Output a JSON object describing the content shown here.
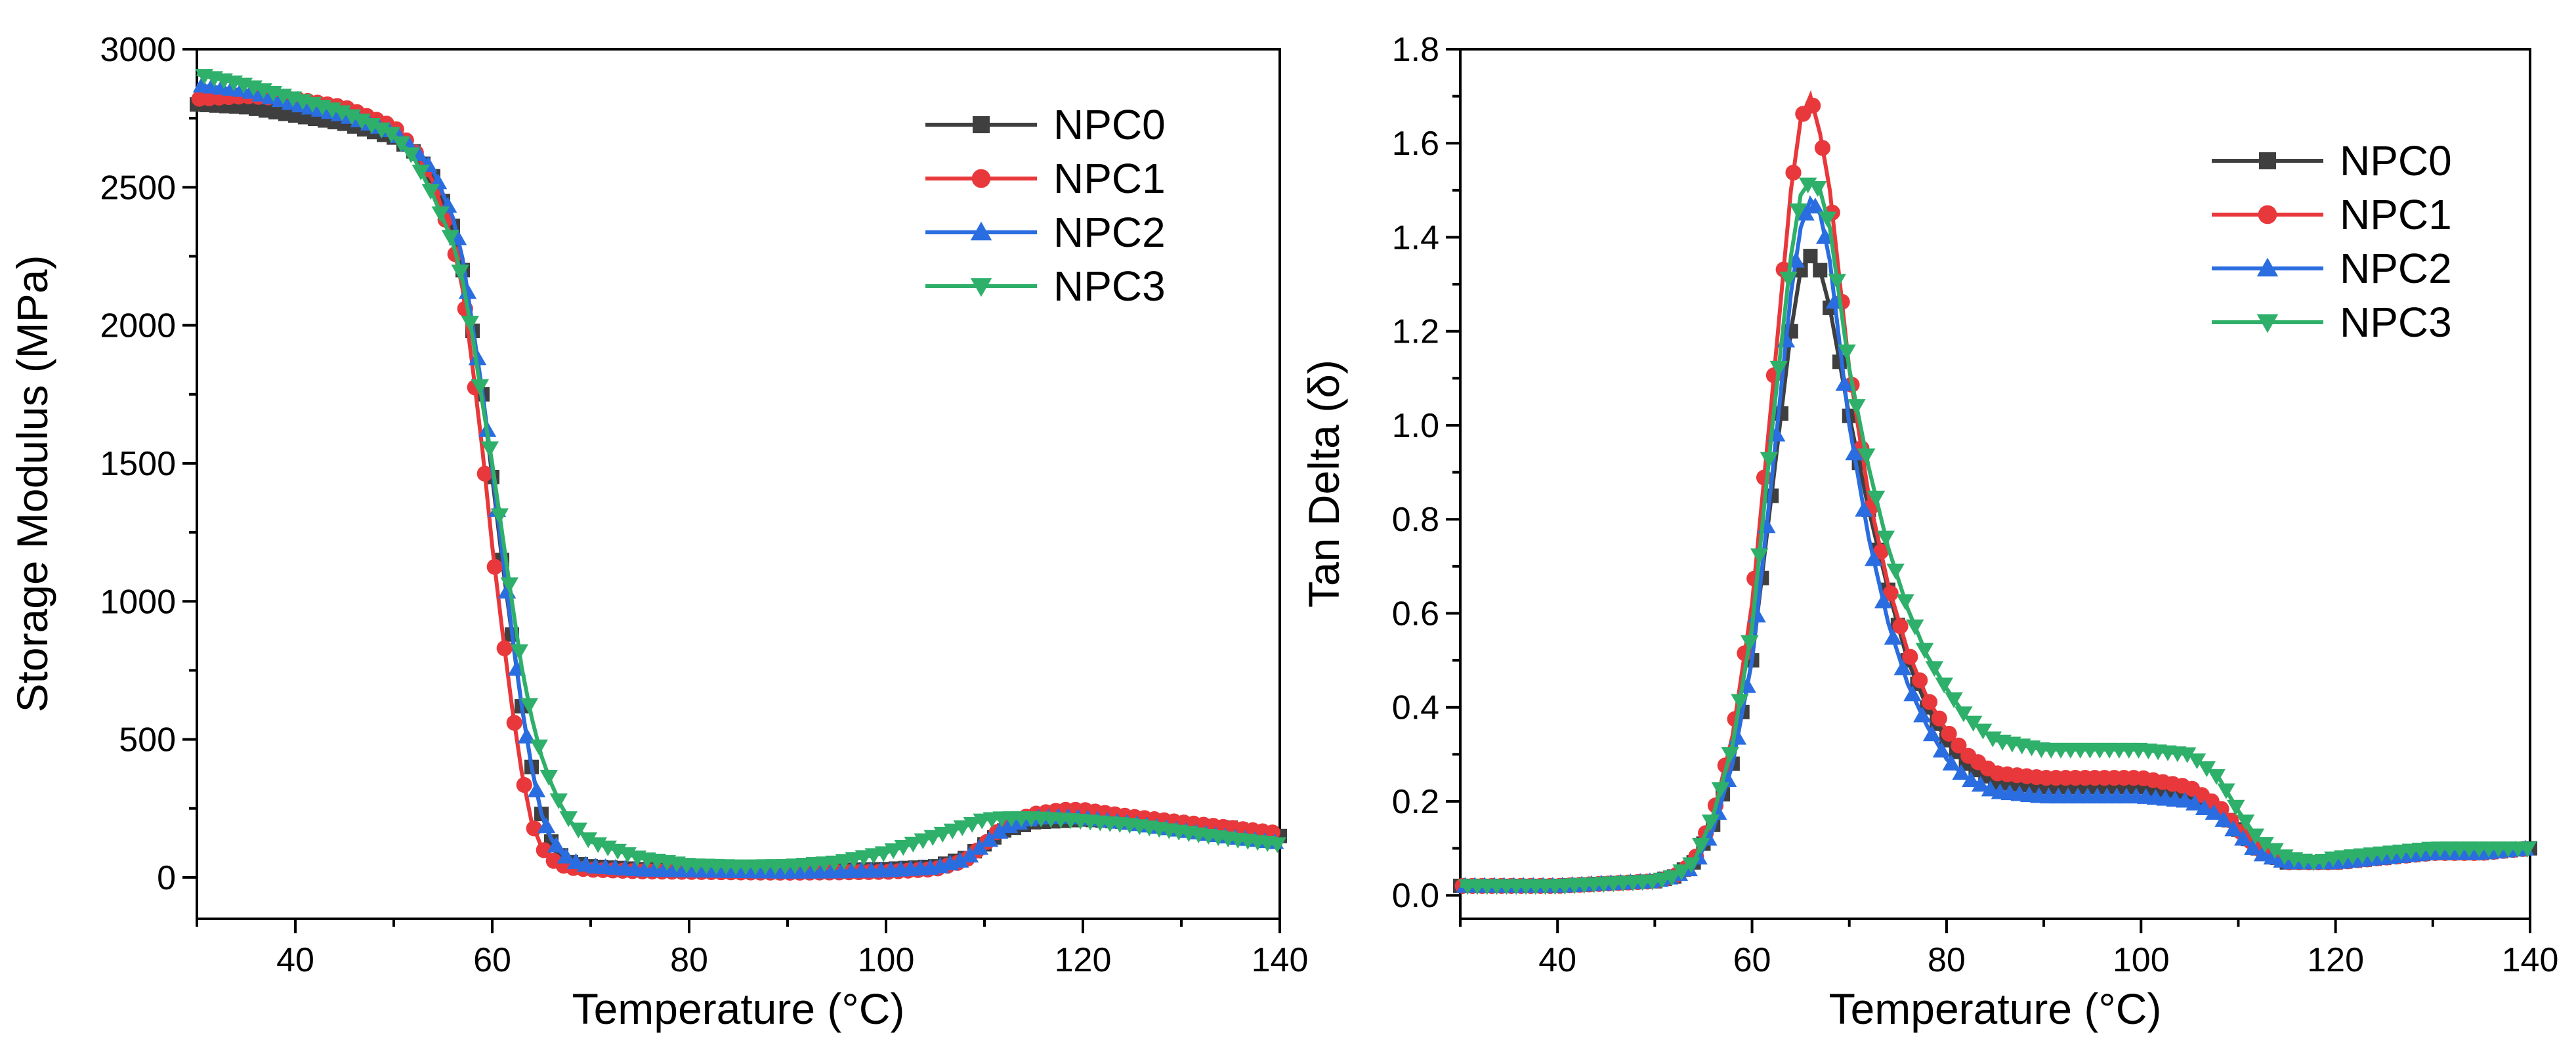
{
  "chart_data": [
    {
      "type": "line",
      "xlabel": "Temperature (°C)",
      "ylabel": "Storage Modulus (MPa)",
      "xlim": [
        30,
        140
      ],
      "ylim": [
        -150,
        3000
      ],
      "xticks": [
        40,
        60,
        80,
        100,
        120,
        140
      ],
      "yticks": [
        0,
        500,
        1000,
        1500,
        2000,
        2500,
        3000
      ],
      "legend_position": "top-right",
      "series": [
        {
          "name": "NPC0",
          "color": "#3f3f3f",
          "marker": "square",
          "x": [
            30,
            35,
            40,
            45,
            50,
            52,
            54,
            56,
            57,
            58,
            59,
            60,
            61,
            62,
            63,
            64,
            65,
            66,
            67,
            68,
            70,
            75,
            80,
            85,
            90,
            95,
            100,
            105,
            108,
            110,
            112,
            115,
            118,
            120,
            125,
            130,
            135,
            140
          ],
          "y": [
            2800,
            2790,
            2760,
            2730,
            2680,
            2630,
            2540,
            2360,
            2200,
            1980,
            1750,
            1450,
            1150,
            880,
            620,
            400,
            230,
            130,
            80,
            55,
            40,
            30,
            28,
            26,
            25,
            27,
            30,
            40,
            70,
            120,
            170,
            200,
            205,
            210,
            200,
            190,
            180,
            150
          ]
        },
        {
          "name": "NPC1",
          "color": "#e8383b",
          "marker": "circle",
          "x": [
            30,
            35,
            40,
            45,
            50,
            52,
            54,
            56,
            57,
            58,
            59,
            60,
            61,
            62,
            63,
            64,
            65,
            66,
            67,
            68,
            70,
            75,
            80,
            85,
            90,
            95,
            100,
            105,
            108,
            110,
            112,
            115,
            118,
            120,
            125,
            130,
            135,
            140
          ],
          "y": [
            2820,
            2830,
            2820,
            2790,
            2720,
            2640,
            2520,
            2300,
            2130,
            1850,
            1550,
            1200,
            900,
            620,
            380,
            200,
            110,
            65,
            45,
            35,
            28,
            22,
            20,
            18,
            17,
            18,
            20,
            30,
            60,
            120,
            190,
            230,
            245,
            245,
            220,
            200,
            180,
            160
          ]
        },
        {
          "name": "NPC2",
          "color": "#2a6de0",
          "marker": "triangle-up",
          "x": [
            30,
            35,
            40,
            45,
            50,
            52,
            54,
            56,
            57,
            58,
            59,
            60,
            61,
            62,
            63,
            64,
            65,
            66,
            67,
            68,
            70,
            75,
            80,
            85,
            90,
            95,
            100,
            105,
            108,
            110,
            112,
            115,
            118,
            120,
            125,
            130,
            135,
            140
          ],
          "y": [
            2870,
            2850,
            2800,
            2760,
            2700,
            2640,
            2560,
            2390,
            2240,
            2000,
            1760,
            1480,
            1180,
            890,
            620,
            400,
            230,
            140,
            90,
            60,
            40,
            28,
            25,
            22,
            20,
            21,
            25,
            35,
            65,
            120,
            180,
            215,
            220,
            215,
            195,
            170,
            145,
            125
          ]
        },
        {
          "name": "NPC3",
          "color": "#2eb06a",
          "marker": "triangle-down",
          "x": [
            30,
            35,
            40,
            45,
            50,
            52,
            54,
            56,
            57,
            58,
            59,
            60,
            61,
            62,
            63,
            64,
            65,
            66,
            67,
            68,
            70,
            75,
            80,
            85,
            90,
            95,
            100,
            105,
            108,
            110,
            112,
            115,
            118,
            120,
            125,
            130,
            135,
            140
          ],
          "y": [
            2910,
            2870,
            2820,
            2770,
            2690,
            2610,
            2470,
            2300,
            2160,
            1960,
            1720,
            1500,
            1250,
            1000,
            760,
            580,
            440,
            340,
            260,
            200,
            130,
            70,
            45,
            40,
            42,
            55,
            90,
            150,
            185,
            210,
            215,
            215,
            210,
            205,
            190,
            165,
            140,
            120
          ]
        }
      ]
    },
    {
      "type": "line",
      "xlabel": "Temperature (°C)",
      "ylabel": "Tan Delta (δ)",
      "xlim": [
        30,
        140
      ],
      "ylim": [
        -0.05,
        1.8
      ],
      "xticks": [
        40,
        60,
        80,
        100,
        120,
        140
      ],
      "yticks": [
        0.0,
        0.2,
        0.4,
        0.6,
        0.8,
        1.0,
        1.2,
        1.4,
        1.6,
        1.8
      ],
      "legend_position": "top-right",
      "series": [
        {
          "name": "NPC0",
          "color": "#3f3f3f",
          "marker": "square",
          "x": [
            30,
            40,
            50,
            52,
            54,
            56,
            58,
            60,
            62,
            64,
            65,
            66,
            67,
            68,
            70,
            72,
            74,
            76,
            78,
            80,
            82,
            85,
            90,
            95,
            100,
            105,
            108,
            110,
            112,
            115,
            118,
            120,
            125,
            130,
            135,
            140
          ],
          "y": [
            0.02,
            0.02,
            0.03,
            0.04,
            0.07,
            0.15,
            0.28,
            0.5,
            0.85,
            1.2,
            1.33,
            1.36,
            1.33,
            1.25,
            1.02,
            0.82,
            0.65,
            0.5,
            0.4,
            0.33,
            0.28,
            0.24,
            0.23,
            0.23,
            0.23,
            0.21,
            0.18,
            0.14,
            0.1,
            0.07,
            0.07,
            0.07,
            0.08,
            0.09,
            0.09,
            0.1
          ]
        },
        {
          "name": "NPC1",
          "color": "#e8383b",
          "marker": "circle",
          "x": [
            30,
            40,
            50,
            52,
            54,
            56,
            58,
            60,
            62,
            64,
            65,
            66,
            67,
            68,
            70,
            72,
            74,
            76,
            78,
            80,
            82,
            85,
            90,
            95,
            100,
            105,
            108,
            110,
            112,
            115,
            118,
            120,
            125,
            130,
            135,
            140
          ],
          "y": [
            0.02,
            0.02,
            0.03,
            0.04,
            0.07,
            0.17,
            0.34,
            0.62,
            1.05,
            1.5,
            1.65,
            1.7,
            1.62,
            1.5,
            1.12,
            0.85,
            0.66,
            0.52,
            0.42,
            0.35,
            0.3,
            0.26,
            0.25,
            0.25,
            0.25,
            0.23,
            0.19,
            0.14,
            0.1,
            0.07,
            0.07,
            0.07,
            0.08,
            0.09,
            0.09,
            0.1
          ]
        },
        {
          "name": "NPC2",
          "color": "#2a6de0",
          "marker": "triangle-up",
          "x": [
            30,
            40,
            50,
            52,
            54,
            56,
            58,
            60,
            62,
            64,
            65,
            66,
            67,
            68,
            70,
            72,
            74,
            76,
            78,
            80,
            82,
            85,
            90,
            95,
            100,
            105,
            108,
            110,
            112,
            115,
            118,
            120,
            125,
            130,
            135,
            140
          ],
          "y": [
            0.02,
            0.02,
            0.03,
            0.04,
            0.06,
            0.14,
            0.28,
            0.5,
            0.88,
            1.28,
            1.42,
            1.48,
            1.45,
            1.35,
            1.0,
            0.76,
            0.58,
            0.45,
            0.36,
            0.29,
            0.25,
            0.22,
            0.21,
            0.21,
            0.21,
            0.2,
            0.17,
            0.13,
            0.09,
            0.07,
            0.07,
            0.07,
            0.08,
            0.09,
            0.09,
            0.1
          ]
        },
        {
          "name": "NPC3",
          "color": "#2eb06a",
          "marker": "triangle-down",
          "x": [
            30,
            40,
            50,
            52,
            54,
            56,
            58,
            60,
            62,
            64,
            65,
            66,
            67,
            68,
            70,
            72,
            74,
            76,
            78,
            80,
            82,
            85,
            90,
            95,
            100,
            105,
            108,
            110,
            112,
            115,
            118,
            120,
            125,
            130,
            135,
            140
          ],
          "y": [
            0.02,
            0.02,
            0.03,
            0.04,
            0.07,
            0.17,
            0.32,
            0.57,
            0.98,
            1.36,
            1.49,
            1.52,
            1.5,
            1.42,
            1.12,
            0.91,
            0.74,
            0.61,
            0.51,
            0.44,
            0.38,
            0.33,
            0.31,
            0.31,
            0.31,
            0.3,
            0.25,
            0.18,
            0.12,
            0.08,
            0.07,
            0.08,
            0.09,
            0.1,
            0.1,
            0.1
          ]
        }
      ]
    }
  ]
}
